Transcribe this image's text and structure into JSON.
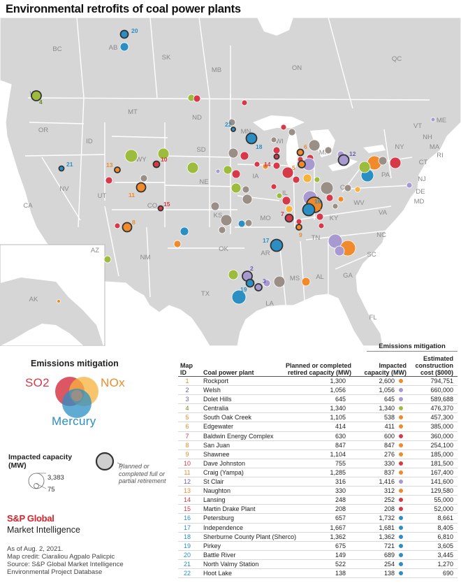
{
  "title": "Environmental retrofits of coal power plants",
  "map": {
    "regions": [
      {
        "label": "BC"
      },
      {
        "label": "AB"
      },
      {
        "label": "SK"
      },
      {
        "label": "MB"
      },
      {
        "label": "ON"
      },
      {
        "label": "QC"
      },
      {
        "label": "WA"
      },
      {
        "label": "OR"
      },
      {
        "label": "CA"
      },
      {
        "label": "NV"
      },
      {
        "label": "ID"
      },
      {
        "label": "MT"
      },
      {
        "label": "WY"
      },
      {
        "label": "UT"
      },
      {
        "label": "AZ"
      },
      {
        "label": "CO"
      },
      {
        "label": "NM"
      },
      {
        "label": "ND"
      },
      {
        "label": "SD"
      },
      {
        "label": "NE"
      },
      {
        "label": "KS"
      },
      {
        "label": "OK"
      },
      {
        "label": "TX"
      },
      {
        "label": "MN"
      },
      {
        "label": "IA"
      },
      {
        "label": "MO"
      },
      {
        "label": "AR"
      },
      {
        "label": "LA"
      },
      {
        "label": "WI"
      },
      {
        "label": "IL"
      },
      {
        "label": "MI"
      },
      {
        "label": "IN"
      },
      {
        "label": "OH"
      },
      {
        "label": "KY"
      },
      {
        "label": "TN"
      },
      {
        "label": "MS"
      },
      {
        "label": "AL"
      },
      {
        "label": "GA"
      },
      {
        "label": "FL"
      },
      {
        "label": "SC"
      },
      {
        "label": "NC"
      },
      {
        "label": "VA"
      },
      {
        "label": "WV"
      },
      {
        "label": "PA"
      },
      {
        "label": "NY"
      },
      {
        "label": "VT"
      },
      {
        "label": "NH"
      },
      {
        "label": "ME"
      },
      {
        "label": "MA"
      },
      {
        "label": "CT"
      },
      {
        "label": "RI"
      },
      {
        "label": "NJ"
      },
      {
        "label": "DE"
      },
      {
        "label": "MD"
      },
      {
        "label": "AK"
      }
    ],
    "numbered_markers": [
      "1",
      "2",
      "3",
      "4",
      "5",
      "6",
      "7",
      "8",
      "9",
      "10",
      "11",
      "12",
      "13",
      "14",
      "15",
      "16",
      "17",
      "18",
      "19",
      "20",
      "21",
      "22"
    ]
  },
  "legend": {
    "mitigation_title": "Emissions mitigation",
    "so2": "SO2",
    "nox": "NOx",
    "mercury": "Mercury",
    "capacity_title": "Impacted capacity (MW)",
    "capacity_max": "3,383",
    "capacity_min": "75",
    "retirement_note": "Planned or completed full or partial retirement"
  },
  "colors": {
    "so2": "#d63a48",
    "nox": "#f08a2a",
    "mercury": "#2b8fc4",
    "so2_nox": "#a89ad0",
    "nox_mercury": "#9dbb3c",
    "all": "#9a8f86",
    "land": "#d6d6d6",
    "water": "#ffffff",
    "border": "#ffffff"
  },
  "brand": {
    "name": "S&P Global",
    "sub": "Market Intelligence"
  },
  "credits": {
    "line1": "As of Aug. 2, 2021.",
    "line2": "Map credit: Ciaraliou Agpalo Palicpic",
    "line3": "Source: S&P Global Market Intelligence",
    "line4": "Environmental Project Database"
  },
  "table": {
    "group_header": "Emissions mitigation",
    "headers": {
      "id": "Map ID",
      "name": "Coal power plant",
      "planned": "Planned or completed retired capacity (MW)",
      "impacted": "Impacted capacity (MW)",
      "cost": "Estimated construction cost ($000)"
    },
    "rows": [
      {
        "id": "1",
        "name": "Rockport",
        "planned": "1,300",
        "impacted": "2,600",
        "mitigation": "nox",
        "cost": "794,751"
      },
      {
        "id": "2",
        "name": "Welsh",
        "planned": "1,056",
        "impacted": "1,056",
        "mitigation": "so2_nox",
        "cost": "660,000"
      },
      {
        "id": "3",
        "name": "Dolet Hills",
        "planned": "645",
        "impacted": "645",
        "mitigation": "so2_nox",
        "cost": "589,688"
      },
      {
        "id": "4",
        "name": "Centralia",
        "planned": "1,340",
        "impacted": "1,340",
        "mitigation": "nox_mercury",
        "cost": "476,370"
      },
      {
        "id": "5",
        "name": "South Oak Creek",
        "planned": "1,105",
        "impacted": "538",
        "mitigation": "nox",
        "cost": "457,300"
      },
      {
        "id": "6",
        "name": "Edgewater",
        "planned": "414",
        "impacted": "411",
        "mitigation": "nox",
        "cost": "385,000"
      },
      {
        "id": "7",
        "name": "Baldwin Energy Complex",
        "planned": "630",
        "impacted": "600",
        "mitigation": "so2",
        "cost": "360,000"
      },
      {
        "id": "8",
        "name": "San Juan",
        "planned": "847",
        "impacted": "847",
        "mitigation": "nox",
        "cost": "254,100"
      },
      {
        "id": "9",
        "name": "Shawnee",
        "planned": "1,104",
        "impacted": "276",
        "mitigation": "nox",
        "cost": "185,000"
      },
      {
        "id": "10",
        "name": "Dave Johnston",
        "planned": "755",
        "impacted": "330",
        "mitigation": "so2",
        "cost": "181,500"
      },
      {
        "id": "11",
        "name": "Craig (Yampa)",
        "planned": "1,285",
        "impacted": "837",
        "mitigation": "nox",
        "cost": "167,400"
      },
      {
        "id": "12",
        "name": "St Clair",
        "planned": "316",
        "impacted": "1,416",
        "mitigation": "so2_nox",
        "cost": "141,600"
      },
      {
        "id": "13",
        "name": "Naughton",
        "planned": "330",
        "impacted": "312",
        "mitigation": "nox",
        "cost": "129,580"
      },
      {
        "id": "14",
        "name": "Lansing",
        "planned": "248",
        "impacted": "252",
        "mitigation": "so2",
        "cost": "55,000"
      },
      {
        "id": "15",
        "name": "Martin Drake Plant",
        "planned": "208",
        "impacted": "208",
        "mitigation": "so2",
        "cost": "52,000"
      },
      {
        "id": "16",
        "name": "Petersburg",
        "planned": "657",
        "impacted": "1,732",
        "mitigation": "mercury",
        "cost": "8,661"
      },
      {
        "id": "17",
        "name": "Independence",
        "planned": "1,667",
        "impacted": "1,681",
        "mitigation": "mercury",
        "cost": "8,405"
      },
      {
        "id": "18",
        "name": "Sherburne County Plant (Sherco)",
        "planned": "1,362",
        "impacted": "1,362",
        "mitigation": "mercury",
        "cost": "6,810"
      },
      {
        "id": "19",
        "name": "Pirkey",
        "planned": "675",
        "impacted": "721",
        "mitigation": "mercury",
        "cost": "3,605"
      },
      {
        "id": "20",
        "name": "Battle River",
        "planned": "149",
        "impacted": "689",
        "mitigation": "mercury",
        "cost": "3,445"
      },
      {
        "id": "21",
        "name": "North Valmy Station",
        "planned": "522",
        "impacted": "254",
        "mitigation": "mercury",
        "cost": "1,270"
      },
      {
        "id": "22",
        "name": "Hoot Lake",
        "planned": "138",
        "impacted": "138",
        "mitigation": "mercury",
        "cost": "690"
      }
    ]
  }
}
